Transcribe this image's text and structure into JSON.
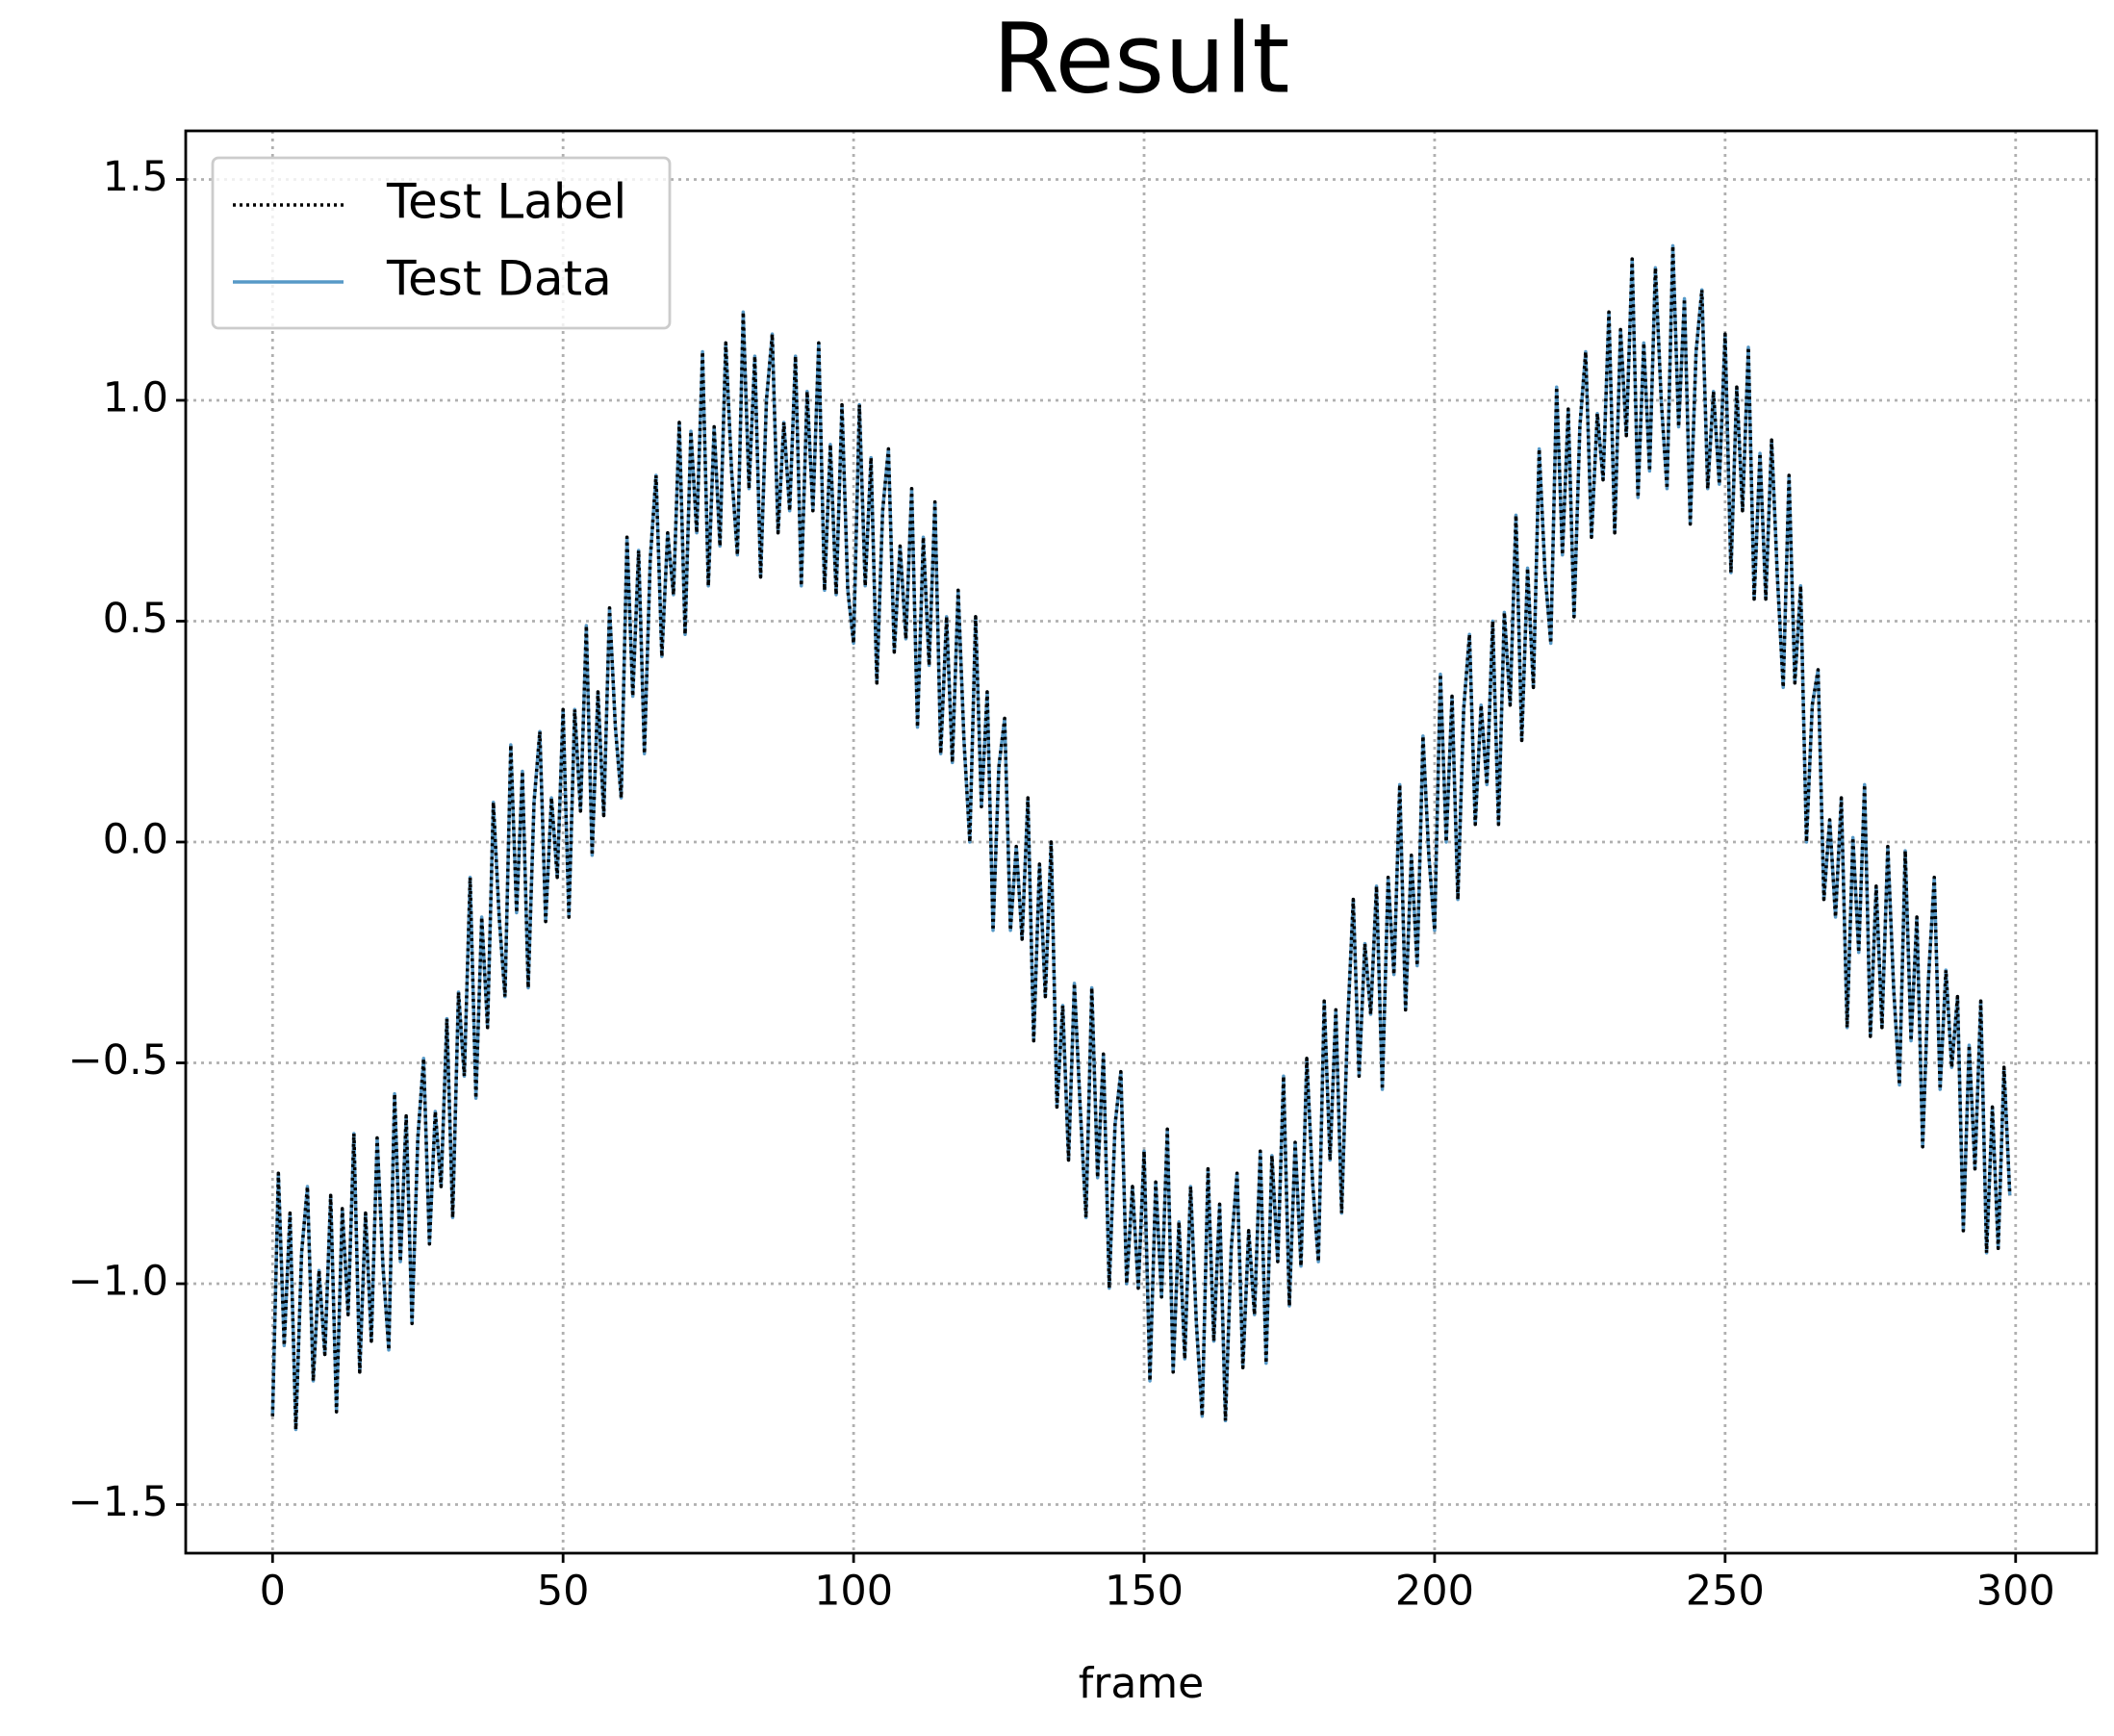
{
  "chart_data": {
    "type": "line",
    "title": "Result",
    "x_label": "frame",
    "x": [
      0,
      1,
      2,
      3,
      4,
      5,
      6,
      7,
      8,
      9,
      10,
      11,
      12,
      13,
      14,
      15,
      16,
      17,
      18,
      19,
      20,
      21,
      22,
      23,
      24,
      25,
      26,
      27,
      28,
      29,
      30,
      31,
      32,
      33,
      34,
      35,
      36,
      37,
      38,
      39,
      40,
      41,
      42,
      43,
      44,
      45,
      46,
      47,
      48,
      49,
      50,
      51,
      52,
      53,
      54,
      55,
      56,
      57,
      58,
      59,
      60,
      61,
      62,
      63,
      64,
      65,
      66,
      67,
      68,
      69,
      70,
      71,
      72,
      73,
      74,
      75,
      76,
      77,
      78,
      79,
      80,
      81,
      82,
      83,
      84,
      85,
      86,
      87,
      88,
      89,
      90,
      91,
      92,
      93,
      94,
      95,
      96,
      97,
      98,
      99,
      100,
      101,
      102,
      103,
      104,
      105,
      106,
      107,
      108,
      109,
      110,
      111,
      112,
      113,
      114,
      115,
      116,
      117,
      118,
      119,
      120,
      121,
      122,
      123,
      124,
      125,
      126,
      127,
      128,
      129,
      130,
      131,
      132,
      133,
      134,
      135,
      136,
      137,
      138,
      139,
      140,
      141,
      142,
      143,
      144,
      145,
      146,
      147,
      148,
      149,
      150,
      151,
      152,
      153,
      154,
      155,
      156,
      157,
      158,
      159,
      160,
      161,
      162,
      163,
      164,
      165,
      166,
      167,
      168,
      169,
      170,
      171,
      172,
      173,
      174,
      175,
      176,
      177,
      178,
      179,
      180,
      181,
      182,
      183,
      184,
      185,
      186,
      187,
      188,
      189,
      190,
      191,
      192,
      193,
      194,
      195,
      196,
      197,
      198,
      199,
      200,
      201,
      202,
      203,
      204,
      205,
      206,
      207,
      208,
      209,
      210,
      211,
      212,
      213,
      214,
      215,
      216,
      217,
      218,
      219,
      220,
      221,
      222,
      223,
      224,
      225,
      226,
      227,
      228,
      229,
      230,
      231,
      232,
      233,
      234,
      235,
      236,
      237,
      238,
      239,
      240,
      241,
      242,
      243,
      244,
      245,
      246,
      247,
      248,
      249,
      250,
      251,
      252,
      253,
      254,
      255,
      256,
      257,
      258,
      259,
      260,
      261,
      262,
      263,
      264,
      265,
      266,
      267,
      268,
      269,
      270,
      271,
      272,
      273,
      274,
      275,
      276,
      277,
      278,
      279,
      280,
      281,
      282,
      283,
      284,
      285,
      286,
      287,
      288,
      289,
      290,
      291,
      292,
      293,
      294,
      295,
      296,
      297,
      298,
      299
    ],
    "series": [
      {
        "name": "Test Label",
        "color": "#000000",
        "linestyle": "dotted",
        "values": [
          -1.3,
          -0.75,
          -1.14,
          -0.84,
          -1.33,
          -0.93,
          -0.78,
          -1.22,
          -0.97,
          -1.16,
          -0.8,
          -1.29,
          -0.83,
          -1.07,
          -0.66,
          -1.2,
          -0.84,
          -1.13,
          -0.67,
          -0.96,
          -1.15,
          -0.57,
          -0.95,
          -0.62,
          -1.09,
          -0.67,
          -0.49,
          -0.91,
          -0.61,
          -0.78,
          -0.4,
          -0.85,
          -0.34,
          -0.53,
          -0.08,
          -0.58,
          -0.17,
          -0.42,
          0.09,
          -0.17,
          -0.35,
          0.22,
          -0.16,
          0.16,
          -0.33,
          0.09,
          0.25,
          -0.18,
          0.1,
          -0.08,
          0.3,
          -0.17,
          0.3,
          0.07,
          0.49,
          -0.03,
          0.34,
          0.06,
          0.53,
          0.26,
          0.1,
          0.69,
          0.33,
          0.66,
          0.2,
          0.64,
          0.83,
          0.42,
          0.7,
          0.56,
          0.95,
          0.47,
          0.93,
          0.7,
          1.11,
          0.58,
          0.94,
          0.67,
          1.13,
          0.84,
          0.65,
          1.2,
          0.8,
          1.1,
          0.6,
          1.0,
          1.15,
          0.7,
          0.95,
          0.75,
          1.1,
          0.58,
          1.02,
          0.75,
          1.13,
          0.57,
          0.9,
          0.56,
          0.99,
          0.57,
          0.45,
          0.99,
          0.58,
          0.87,
          0.36,
          0.75,
          0.89,
          0.43,
          0.67,
          0.46,
          0.8,
          0.26,
          0.69,
          0.4,
          0.77,
          0.2,
          0.51,
          0.18,
          0.57,
          0.23,
          0.0,
          0.51,
          0.08,
          0.34,
          -0.2,
          0.17,
          0.28,
          -0.2,
          -0.01,
          -0.22,
          0.1,
          -0.45,
          -0.05,
          -0.35,
          0.0,
          -0.6,
          -0.37,
          -0.72,
          -0.32,
          -0.6,
          -0.85,
          -0.33,
          -0.76,
          -0.48,
          -1.01,
          -0.64,
          -0.52,
          -1.0,
          -0.78,
          -1.01,
          -0.7,
          -1.22,
          -0.77,
          -1.03,
          -0.65,
          -1.2,
          -0.86,
          -1.17,
          -0.78,
          -1.09,
          -1.3,
          -0.74,
          -1.13,
          -0.82,
          -1.31,
          -0.92,
          -0.75,
          -1.19,
          -0.88,
          -1.07,
          -0.7,
          -1.18,
          -0.71,
          -0.95,
          -0.53,
          -1.05,
          -0.68,
          -0.96,
          -0.49,
          -0.77,
          -0.95,
          -0.36,
          -0.72,
          -0.38,
          -0.84,
          -0.42,
          -0.13,
          -0.53,
          -0.23,
          -0.39,
          -0.1,
          -0.56,
          -0.08,
          -0.3,
          0.13,
          -0.38,
          -0.03,
          -0.28,
          0.24,
          -0.03,
          -0.2,
          0.38,
          0.0,
          0.33,
          -0.13,
          0.3,
          0.47,
          0.04,
          0.31,
          0.13,
          0.5,
          0.04,
          0.52,
          0.31,
          0.74,
          0.23,
          0.62,
          0.35,
          0.89,
          0.61,
          0.45,
          1.03,
          0.65,
          0.98,
          0.51,
          0.94,
          1.11,
          0.69,
          0.97,
          0.82,
          1.2,
          0.7,
          1.16,
          0.92,
          1.32,
          0.78,
          1.13,
          0.84,
          1.3,
          1.0,
          0.8,
          1.35,
          0.94,
          1.23,
          0.72,
          1.11,
          1.25,
          0.8,
          1.02,
          0.81,
          1.15,
          0.61,
          1.03,
          0.75,
          1.12,
          0.55,
          0.88,
          0.55,
          0.91,
          0.6,
          0.35,
          0.83,
          0.36,
          0.58,
          0.0,
          0.31,
          0.39,
          -0.13,
          0.05,
          -0.17,
          0.1,
          -0.42,
          0.01,
          -0.25,
          0.13,
          -0.44,
          -0.1,
          -0.42,
          -0.01,
          -0.33,
          -0.55,
          -0.02,
          -0.45,
          -0.17,
          -0.69,
          -0.31,
          -0.08,
          -0.56,
          -0.29,
          -0.51,
          -0.35,
          -0.88,
          -0.46,
          -0.74,
          -0.36,
          -0.93,
          -0.6,
          -0.92,
          -0.51,
          -0.8
        ]
      },
      {
        "name": "Test Data",
        "color": "#1f77b4",
        "linestyle": "solid",
        "values": [
          -1.3,
          -0.75,
          -1.14,
          -0.84,
          -1.33,
          -0.93,
          -0.78,
          -1.22,
          -0.97,
          -1.16,
          -0.8,
          -1.29,
          -0.83,
          -1.07,
          -0.66,
          -1.2,
          -0.84,
          -1.13,
          -0.67,
          -0.96,
          -1.15,
          -0.57,
          -0.95,
          -0.62,
          -1.09,
          -0.67,
          -0.49,
          -0.91,
          -0.61,
          -0.78,
          -0.4,
          -0.85,
          -0.34,
          -0.53,
          -0.08,
          -0.58,
          -0.17,
          -0.42,
          0.09,
          -0.17,
          -0.35,
          0.22,
          -0.16,
          0.16,
          -0.33,
          0.09,
          0.25,
          -0.18,
          0.1,
          -0.08,
          0.3,
          -0.17,
          0.3,
          0.07,
          0.49,
          -0.03,
          0.34,
          0.06,
          0.53,
          0.26,
          0.1,
          0.69,
          0.33,
          0.66,
          0.2,
          0.64,
          0.83,
          0.42,
          0.7,
          0.56,
          0.95,
          0.47,
          0.93,
          0.7,
          1.11,
          0.58,
          0.94,
          0.67,
          1.13,
          0.84,
          0.65,
          1.2,
          0.8,
          1.1,
          0.6,
          1.0,
          1.15,
          0.7,
          0.95,
          0.75,
          1.1,
          0.58,
          1.02,
          0.75,
          1.13,
          0.57,
          0.9,
          0.56,
          0.99,
          0.57,
          0.45,
          0.99,
          0.58,
          0.87,
          0.36,
          0.75,
          0.89,
          0.43,
          0.67,
          0.46,
          0.8,
          0.26,
          0.69,
          0.4,
          0.77,
          0.2,
          0.51,
          0.18,
          0.57,
          0.23,
          0.0,
          0.51,
          0.08,
          0.34,
          -0.2,
          0.17,
          0.28,
          -0.2,
          -0.01,
          -0.22,
          0.1,
          -0.45,
          -0.05,
          -0.35,
          0.0,
          -0.6,
          -0.37,
          -0.72,
          -0.32,
          -0.6,
          -0.85,
          -0.33,
          -0.76,
          -0.48,
          -1.01,
          -0.64,
          -0.52,
          -1.0,
          -0.78,
          -1.01,
          -0.7,
          -1.22,
          -0.77,
          -1.03,
          -0.65,
          -1.2,
          -0.86,
          -1.17,
          -0.78,
          -1.09,
          -1.3,
          -0.74,
          -1.13,
          -0.82,
          -1.31,
          -0.92,
          -0.75,
          -1.19,
          -0.88,
          -1.07,
          -0.7,
          -1.18,
          -0.71,
          -0.95,
          -0.53,
          -1.05,
          -0.68,
          -0.96,
          -0.49,
          -0.77,
          -0.95,
          -0.36,
          -0.72,
          -0.38,
          -0.84,
          -0.42,
          -0.13,
          -0.53,
          -0.23,
          -0.39,
          -0.1,
          -0.56,
          -0.08,
          -0.3,
          0.13,
          -0.38,
          -0.03,
          -0.28,
          0.24,
          -0.03,
          -0.2,
          0.38,
          0.0,
          0.33,
          -0.13,
          0.3,
          0.47,
          0.04,
          0.31,
          0.13,
          0.5,
          0.04,
          0.52,
          0.31,
          0.74,
          0.23,
          0.62,
          0.35,
          0.89,
          0.61,
          0.45,
          1.03,
          0.65,
          0.98,
          0.51,
          0.94,
          1.11,
          0.69,
          0.97,
          0.82,
          1.2,
          0.7,
          1.16,
          0.92,
          1.32,
          0.78,
          1.13,
          0.84,
          1.3,
          1.0,
          0.8,
          1.35,
          0.94,
          1.23,
          0.72,
          1.11,
          1.25,
          0.8,
          1.02,
          0.81,
          1.15,
          0.61,
          1.03,
          0.75,
          1.12,
          0.55,
          0.88,
          0.55,
          0.91,
          0.6,
          0.35,
          0.83,
          0.36,
          0.58,
          0.0,
          0.31,
          0.39,
          -0.13,
          0.05,
          -0.17,
          0.1,
          -0.42,
          0.01,
          -0.25,
          0.13,
          -0.44,
          -0.1,
          -0.42,
          -0.01,
          -0.33,
          -0.55,
          -0.02,
          -0.45,
          -0.17,
          -0.69,
          -0.31,
          -0.08,
          -0.56,
          -0.29,
          -0.51,
          -0.35,
          -0.88,
          -0.46,
          -0.74,
          -0.36,
          -0.93,
          -0.6,
          -0.92,
          -0.51,
          -0.8
        ]
      }
    ],
    "xlim": [
      -14.95,
      313.95
    ],
    "xticks": [
      0,
      50,
      100,
      150,
      200,
      250,
      300
    ],
    "ylim": [
      -1.61,
      1.61
    ],
    "yticks": [
      {
        "value": -1.5,
        "label": "−1.5"
      },
      {
        "value": -1,
        "label": "−1.0"
      },
      {
        "value": -0.5,
        "label": "−0.5"
      },
      {
        "value": 0,
        "label": "0.0"
      },
      0.5,
      {
        "value": 1,
        "label": "1.0"
      },
      1.5
    ],
    "grid": true,
    "legend": "upper left"
  }
}
